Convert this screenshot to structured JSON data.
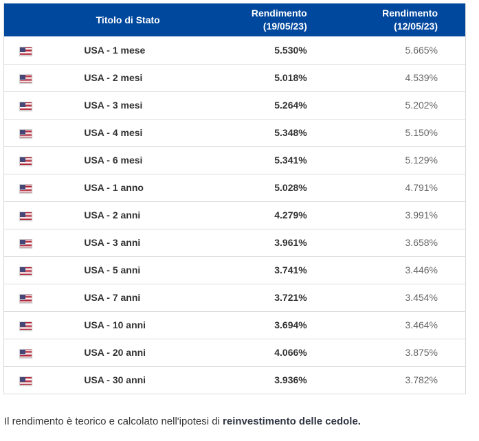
{
  "table": {
    "headers": {
      "title": "Titolo di Stato",
      "col3_line1": "Rendimento",
      "col3_line2": "(19/05/23)",
      "col4_line1": "Rendimento",
      "col4_line2": "(12/05/23)"
    },
    "flag_icon": "us-flag",
    "rows": [
      {
        "title": "USA - 1 mese",
        "yield_new": "5.530%",
        "yield_old": "5.665%"
      },
      {
        "title": "USA - 2 mesi",
        "yield_new": "5.018%",
        "yield_old": "4.539%"
      },
      {
        "title": "USA - 3 mesi",
        "yield_new": "5.264%",
        "yield_old": "5.202%"
      },
      {
        "title": "USA - 4 mesi",
        "yield_new": "5.348%",
        "yield_old": "5.150%"
      },
      {
        "title": "USA - 6 mesi",
        "yield_new": "5.341%",
        "yield_old": "5.129%"
      },
      {
        "title": "USA - 1 anno",
        "yield_new": "5.028%",
        "yield_old": "4.791%"
      },
      {
        "title": "USA - 2 anni",
        "yield_new": "4.279%",
        "yield_old": "3.991%"
      },
      {
        "title": "USA - 3 anni",
        "yield_new": "3.961%",
        "yield_old": "3.658%"
      },
      {
        "title": "USA - 5 anni",
        "yield_new": "3.741%",
        "yield_old": "3.446%"
      },
      {
        "title": "USA - 7 anni",
        "yield_new": "3.721%",
        "yield_old": "3.454%"
      },
      {
        "title": "USA - 10 anni",
        "yield_new": "3.694%",
        "yield_old": "3.464%"
      },
      {
        "title": "USA - 20 anni",
        "yield_new": "4.066%",
        "yield_old": "3.875%"
      },
      {
        "title": "USA - 30 anni",
        "yield_new": "3.936%",
        "yield_old": "3.782%"
      }
    ]
  },
  "footer": {
    "text_regular": "Il rendimento è teorico e calcolato nell'ipotesi di ",
    "text_bold": "reinvestimento delle cedole",
    "text_end": "."
  },
  "colors": {
    "header_bg": "#00489E",
    "header_text": "#ffffff",
    "row_border": "#dddddd",
    "yield_new_text": "#333333",
    "yield_old_text": "#666666"
  },
  "chart_data": {
    "type": "table",
    "columns": [
      "Titolo di Stato",
      "Rendimento (19/05/23)",
      "Rendimento (12/05/23)"
    ],
    "rows": [
      [
        "USA - 1 mese",
        5.53,
        5.665
      ],
      [
        "USA - 2 mesi",
        5.018,
        4.539
      ],
      [
        "USA - 3 mesi",
        5.264,
        5.202
      ],
      [
        "USA - 4 mesi",
        5.348,
        5.15
      ],
      [
        "USA - 6 mesi",
        5.341,
        5.129
      ],
      [
        "USA - 1 anno",
        5.028,
        4.791
      ],
      [
        "USA - 2 anni",
        4.279,
        3.991
      ],
      [
        "USA - 3 anni",
        3.961,
        3.658
      ],
      [
        "USA - 5 anni",
        3.741,
        3.446
      ],
      [
        "USA - 7 anni",
        3.721,
        3.454
      ],
      [
        "USA - 10 anni",
        3.694,
        3.464
      ],
      [
        "USA - 20 anni",
        4.066,
        3.875
      ],
      [
        "USA - 30 anni",
        3.936,
        3.782
      ]
    ],
    "units": "percent",
    "note": "Il rendimento è teorico e calcolato nell'ipotesi di reinvestimento delle cedole."
  }
}
